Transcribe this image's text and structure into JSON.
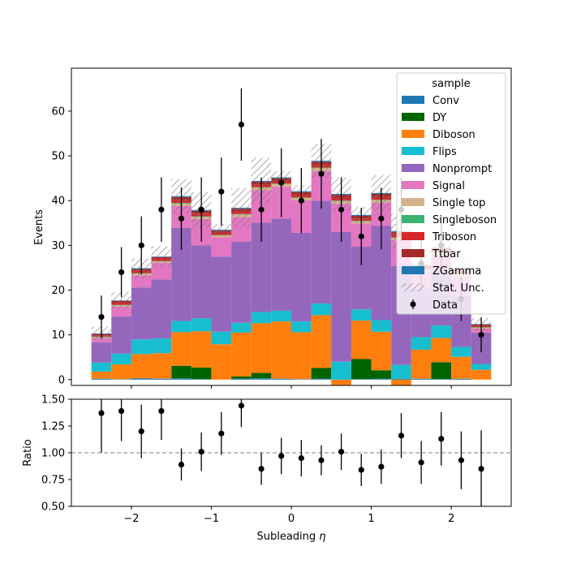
{
  "chart_data": [
    {
      "type": "bar",
      "stacked": true,
      "xlabel": "",
      "ylabel": "Events",
      "xlim": [
        -2.75,
        2.75
      ],
      "ylim": [
        -1.3,
        69.6
      ],
      "yticks": [
        0,
        10,
        20,
        30,
        40,
        50,
        60
      ],
      "bin_edges": [
        -2.5,
        -2.25,
        -2.0,
        -1.75,
        -1.5,
        -1.25,
        -1.0,
        -0.75,
        -0.5,
        -0.25,
        0.0,
        0.25,
        0.5,
        0.75,
        1.0,
        1.25,
        1.5,
        1.75,
        2.0,
        2.25,
        2.5
      ],
      "legend_title": "sample",
      "legend_position": "top-right",
      "series": [
        {
          "name": "Conv",
          "color": "#1f77b4",
          "values": [
            0.2,
            0.1,
            0.3,
            0.2,
            0.3,
            0.1,
            0.0,
            0.2,
            0.3,
            0.2,
            0.1,
            0.2,
            0.0,
            0.1,
            0.2,
            0.2,
            0.2,
            0.1,
            0.2,
            0.0
          ]
        },
        {
          "name": "DY",
          "color": "#006400",
          "values": [
            0.0,
            0.0,
            0.0,
            0.0,
            2.8,
            2.6,
            0.0,
            0.5,
            1.2,
            0.0,
            0.0,
            2.4,
            0.0,
            4.5,
            1.9,
            0.0,
            0.0,
            3.8,
            0.0,
            0.0
          ]
        },
        {
          "name": "Diboson",
          "color": "#ff7f0e",
          "values": [
            1.6,
            3.3,
            5.4,
            5.7,
            7.5,
            8.1,
            7.9,
            9.8,
            11.1,
            12.8,
            10.5,
            11.8,
            -1.2,
            8.6,
            8.6,
            -1.3,
            6.5,
            5.4,
            4.9,
            2.2
          ]
        },
        {
          "name": "Flips",
          "color": "#17becf",
          "values": [
            2.0,
            2.4,
            3.3,
            3.3,
            2.5,
            2.9,
            2.8,
            2.2,
            2.5,
            2.4,
            2.4,
            2.6,
            4.0,
            2.5,
            2.6,
            3.1,
            2.8,
            2.8,
            2.2,
            1.3
          ]
        },
        {
          "name": "Nonprompt",
          "color": "#9467bd",
          "values": [
            4.5,
            8.3,
            11.6,
            13.2,
            20.8,
            16.3,
            16.8,
            18.1,
            20.0,
            20.6,
            19.8,
            23.0,
            29.0,
            14.0,
            21.1,
            22.1,
            10.9,
            12.3,
            11.5,
            7.0
          ]
        },
        {
          "name": "Signal",
          "color": "#e377c2",
          "values": [
            1.0,
            2.2,
            2.7,
            3.7,
            4.9,
            5.9,
            4.3,
            5.5,
            7.2,
            7.1,
            7.3,
            6.6,
            6.3,
            5.2,
            5.1,
            5.7,
            3.7,
            3.5,
            4.3,
            0.9
          ]
        },
        {
          "name": "Single top",
          "color": "#d2b48c",
          "values": [
            0.2,
            0.3,
            0.4,
            0.3,
            0.6,
            0.5,
            0.4,
            0.6,
            0.6,
            0.6,
            0.5,
            0.7,
            0.6,
            0.5,
            0.6,
            0.6,
            0.4,
            0.4,
            0.5,
            0.2
          ]
        },
        {
          "name": "Singleboson",
          "color": "#3cb371",
          "values": [
            0.1,
            0.1,
            0.1,
            0.1,
            0.1,
            0.1,
            0.1,
            0.1,
            0.1,
            0.1,
            0.1,
            0.1,
            0.1,
            0.1,
            0.1,
            0.1,
            0.1,
            0.1,
            0.1,
            0.1
          ]
        },
        {
          "name": "Triboson",
          "color": "#d62728",
          "values": [
            0.3,
            0.5,
            0.5,
            0.5,
            0.6,
            0.6,
            0.5,
            0.6,
            0.6,
            0.6,
            0.6,
            0.6,
            0.6,
            0.5,
            0.6,
            0.6,
            0.5,
            0.5,
            0.5,
            0.3
          ]
        },
        {
          "name": "Ttbar",
          "color": "#a52a2a",
          "values": [
            0.3,
            0.4,
            0.4,
            0.4,
            0.7,
            0.6,
            0.5,
            0.6,
            0.6,
            0.6,
            0.6,
            0.7,
            0.7,
            0.6,
            0.7,
            0.6,
            0.4,
            0.5,
            0.5,
            0.3
          ]
        },
        {
          "name": "ZGamma",
          "color": "#1f77b4",
          "values": [
            0.1,
            0.1,
            0.2,
            0.1,
            0.2,
            0.2,
            0.2,
            0.2,
            0.2,
            0.2,
            0.2,
            0.2,
            0.2,
            0.2,
            0.2,
            0.2,
            0.1,
            0.1,
            0.1,
            0.1
          ]
        }
      ],
      "stat_unc": {
        "name": "Stat. Unc.",
        "values": [
          1.5,
          1.9,
          2.2,
          2.3,
          3.8,
          4.0,
          1.3,
          4.4,
          5.2,
          1.4,
          1.4,
          3.8,
          3.7,
          1.8,
          4.0,
          3.9,
          3.2,
          2.9,
          2.2,
          1.4
        ]
      },
      "data_points": {
        "name": "Data",
        "x": [
          -2.375,
          -2.125,
          -1.875,
          -1.625,
          -1.375,
          -1.125,
          -0.875,
          -0.625,
          -0.375,
          -0.125,
          0.125,
          0.375,
          0.625,
          0.875,
          1.125,
          1.375,
          1.625,
          1.875,
          2.125,
          2.375
        ],
        "y": [
          14,
          24,
          30,
          38,
          36,
          38,
          42,
          57,
          38,
          44,
          40,
          46,
          38,
          32,
          36,
          38,
          26,
          30,
          18,
          10
        ],
        "yerr": [
          4.8,
          5.6,
          6.5,
          7.2,
          7.0,
          7.2,
          7.6,
          8.1,
          7.2,
          7.7,
          7.3,
          7.8,
          7.2,
          6.4,
          6.9,
          7.2,
          5.9,
          6.4,
          4.9,
          3.9
        ]
      }
    },
    {
      "type": "scatter",
      "xlabel": "Subleading $\\eta$",
      "ylabel": "Ratio",
      "xlim": [
        -2.75,
        2.75
      ],
      "ylim": [
        0.5,
        1.5
      ],
      "xticks": [
        -2,
        -1,
        0,
        1,
        2
      ],
      "xtick_labels": [
        "−2",
        "−1",
        "0",
        "1",
        "2"
      ],
      "yticks": [
        0.5,
        0.75,
        1.0,
        1.25,
        1.5
      ],
      "ytick_labels": [
        "0.50",
        "0.75",
        "1.00",
        "1.25",
        "1.50"
      ],
      "reference_line": 1.0,
      "x": [
        -2.375,
        -2.125,
        -1.875,
        -1.625,
        -1.375,
        -1.125,
        -0.875,
        -0.625,
        -0.375,
        -0.125,
        0.125,
        0.375,
        0.625,
        0.875,
        1.125,
        1.375,
        1.625,
        1.875,
        2.125,
        2.375
      ],
      "y": [
        1.37,
        1.39,
        1.2,
        1.39,
        0.89,
        1.01,
        1.18,
        1.44,
        0.85,
        0.97,
        0.95,
        0.93,
        1.01,
        0.84,
        0.87,
        1.16,
        0.91,
        1.13,
        0.93,
        0.85
      ],
      "yerr": [
        0.37,
        0.28,
        0.25,
        0.27,
        0.15,
        0.18,
        0.2,
        0.2,
        0.15,
        0.17,
        0.17,
        0.14,
        0.17,
        0.15,
        0.16,
        0.21,
        0.2,
        0.25,
        0.27,
        0.36
      ]
    }
  ]
}
